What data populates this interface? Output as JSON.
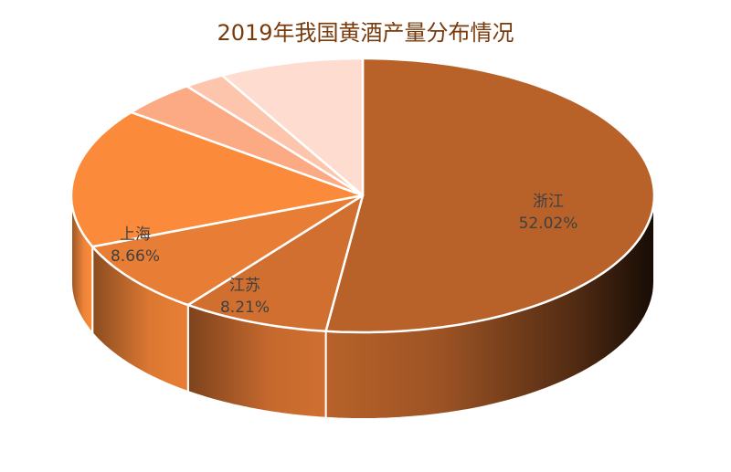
{
  "title": "2019年我国黄酒产量分布情况",
  "chart_data": {
    "type": "pie",
    "style": "3d",
    "title": "2019年我国黄酒产量分布情况",
    "slices": [
      {
        "label": "浙江",
        "value": 52.02,
        "display": "52.02%",
        "color": "#b8622a",
        "labeled": true
      },
      {
        "label": "江苏",
        "value": 8.21,
        "display": "8.21%",
        "color": "#d06f30",
        "labeled": true
      },
      {
        "label": "上海",
        "value": 8.66,
        "display": "8.66%",
        "color": "#e87e35",
        "labeled": true
      },
      {
        "label": "",
        "value": 16.5,
        "display": "",
        "color": "#fb8b3b",
        "labeled": false
      },
      {
        "label": "",
        "value": 4.3,
        "display": "",
        "color": "#fcaa84",
        "labeled": false
      },
      {
        "label": "",
        "value": 2.3,
        "display": "",
        "color": "#fec5ad",
        "labeled": false
      },
      {
        "label": "",
        "value": 8.01,
        "display": "",
        "color": "#fedcd0",
        "labeled": false
      }
    ],
    "start_angle": "12 o'clock",
    "direction": "clockwise",
    "legend": "none",
    "data_labels": "inside, category name + percentage"
  }
}
